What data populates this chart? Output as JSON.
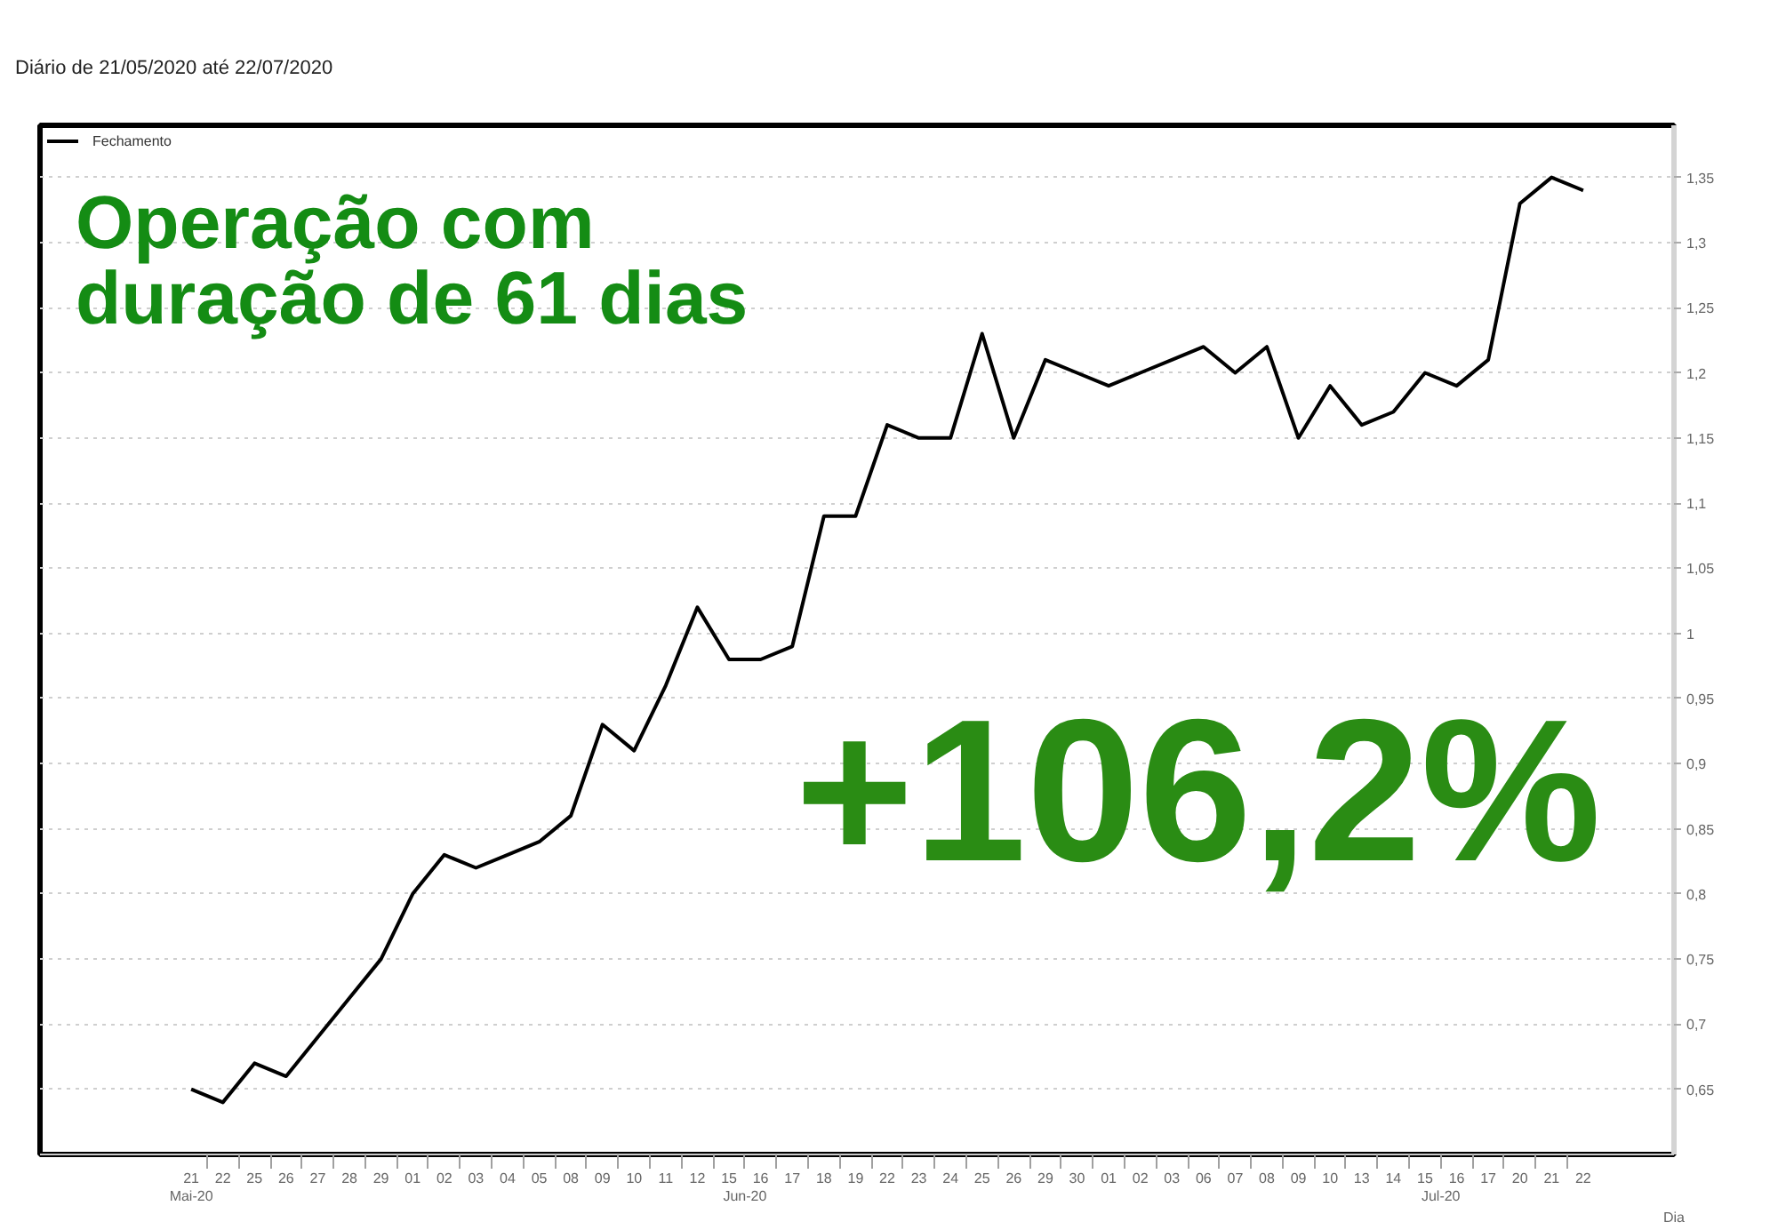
{
  "chart_data": {
    "type": "line",
    "title": "Diário de 21/05/2020 até 22/07/2020",
    "xlabel": "Dia",
    "categories": [
      "21",
      "22",
      "25",
      "26",
      "27",
      "28",
      "29",
      "01",
      "02",
      "03",
      "04",
      "05",
      "08",
      "09",
      "10",
      "11",
      "12",
      "15",
      "16",
      "17",
      "18",
      "19",
      "22",
      "23",
      "24",
      "25",
      "26",
      "29",
      "30",
      "01",
      "02",
      "03",
      "06",
      "07",
      "08",
      "09",
      "10",
      "13",
      "14",
      "15",
      "16",
      "17",
      "20",
      "21",
      "22"
    ],
    "series": [
      {
        "name": "Fechamento",
        "color": "#000000",
        "values": [
          0.65,
          0.64,
          0.67,
          0.66,
          0.69,
          0.72,
          0.75,
          0.8,
          0.83,
          0.82,
          0.83,
          0.84,
          0.86,
          0.93,
          0.91,
          0.96,
          1.02,
          0.98,
          0.98,
          0.99,
          1.09,
          1.09,
          1.16,
          1.15,
          1.15,
          1.23,
          1.15,
          1.21,
          1.2,
          1.19,
          1.2,
          1.21,
          1.22,
          1.2,
          1.22,
          1.15,
          1.19,
          1.16,
          1.17,
          1.2,
          1.19,
          1.21,
          1.33,
          1.35,
          1.34
        ]
      }
    ],
    "ylim": [
      0.6,
      1.39
    ],
    "yticks": [
      {
        "value": 0.65,
        "label": "0,65"
      },
      {
        "value": 0.7,
        "label": "0,7"
      },
      {
        "value": 0.75,
        "label": "0,75"
      },
      {
        "value": 0.8,
        "label": "0,8"
      },
      {
        "value": 0.85,
        "label": "0,85"
      },
      {
        "value": 0.9,
        "label": "0,9"
      },
      {
        "value": 0.95,
        "label": "0,95"
      },
      1,
      {
        "value": 1.05,
        "label": "1,05"
      },
      {
        "value": 1.1,
        "label": "1,1"
      },
      {
        "value": 1.15,
        "label": "1,15"
      },
      {
        "value": 1.2,
        "label": "1,2"
      },
      {
        "value": 1.25,
        "label": "1,25"
      },
      {
        "value": 1.3,
        "label": "1,3"
      },
      {
        "value": 1.35,
        "label": "1,35"
      }
    ],
    "grid": "y",
    "legend": "top left",
    "annotations": [
      "Operação com duração de 61 dias",
      "+106,2%",
      "Mai-20",
      "Jun-20",
      "Jul-20"
    ]
  }
}
